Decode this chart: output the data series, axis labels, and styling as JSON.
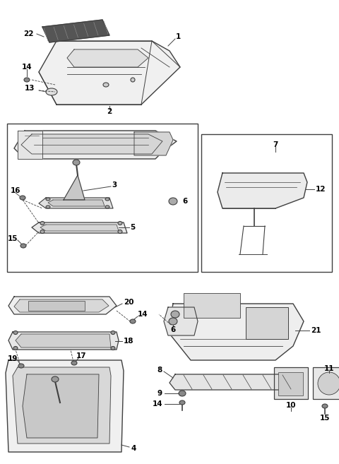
{
  "bg_color": "#ffffff",
  "line_color": "#404040",
  "fill_color": "#f5f5f5",
  "dark_fill": "#d0d0d0",
  "fig_width": 4.8,
  "fig_height": 6.57,
  "dpi": 100
}
